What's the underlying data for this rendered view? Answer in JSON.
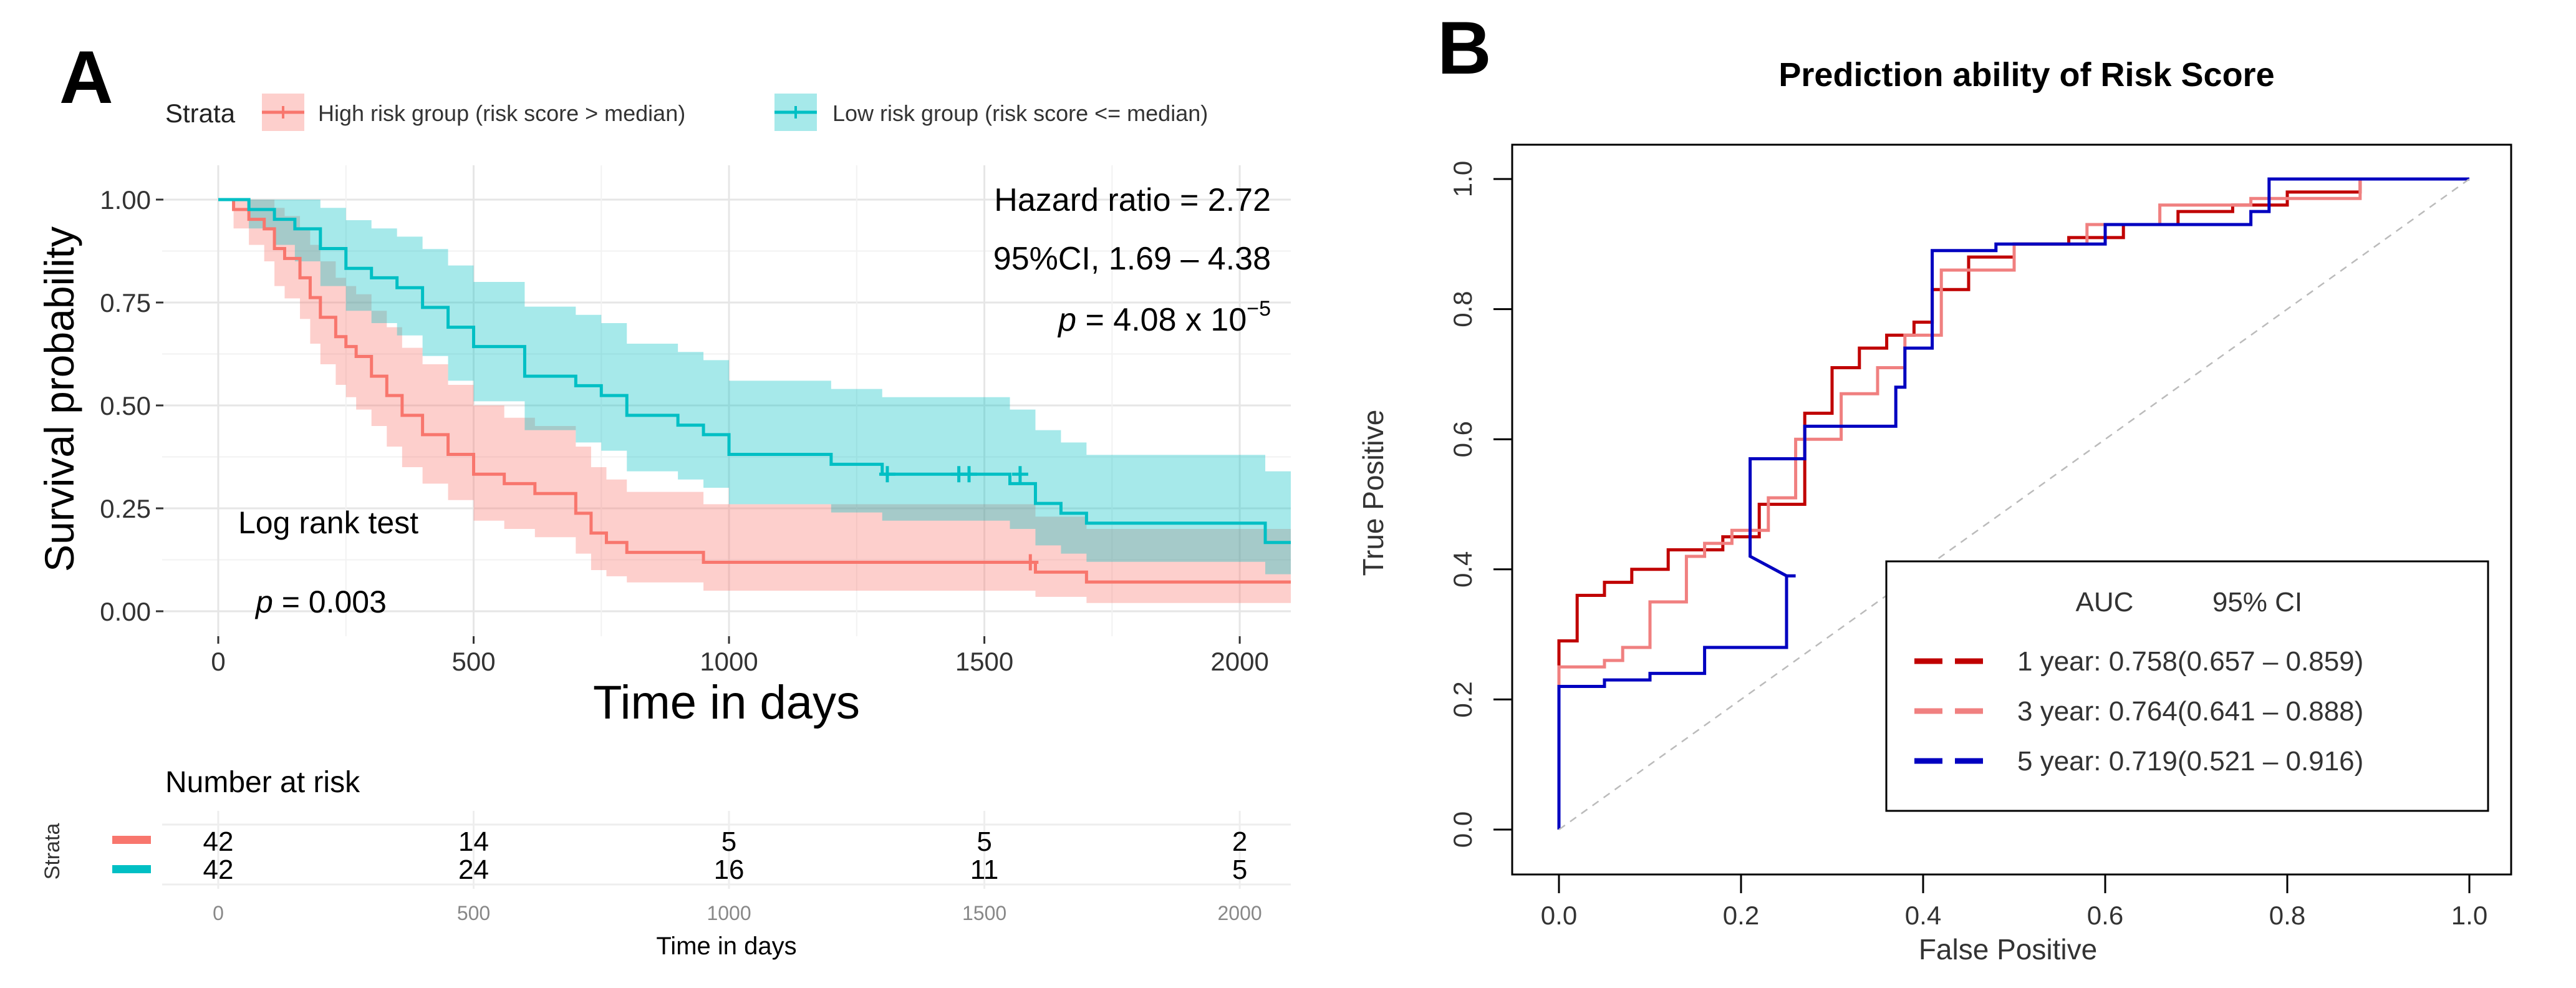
{
  "panel_a": {
    "label": "A",
    "strata_title": "Strata",
    "legend": [
      {
        "name": "High risk group (risk score > median)",
        "color": "#F8766D",
        "fill": "#F8766D"
      },
      {
        "name": "Low risk group (risk score <= median)",
        "color": "#00BFC4",
        "fill": "#00BFC4"
      }
    ],
    "annotations": {
      "hr": "Hazard ratio = 2.72",
      "ci": "95%CI, 1.69 – 4.38",
      "p_italic": "p",
      "p_text": " = 4.08 x 10",
      "p_exp": "−5",
      "logrank": "Log rank test",
      "logrank_p_italic": "p",
      "logrank_p_text": " = 0.003"
    },
    "risk_table": {
      "title": "Number at risk",
      "strata_label": "Strata",
      "times": [
        0,
        500,
        1000,
        1500,
        2000
      ],
      "time_labels": [
        "0",
        "500",
        "1000",
        "1500",
        "2000"
      ],
      "rows": [
        {
          "color": "#F8766D",
          "counts": [
            "42",
            "14",
            "5",
            "5",
            "2"
          ]
        },
        {
          "color": "#00BFC4",
          "counts": [
            "42",
            "24",
            "16",
            "11",
            "5"
          ]
        }
      ],
      "xlabel": "Time in days"
    }
  },
  "panel_b": {
    "label": "B",
    "legend_header": {
      "auc": "AUC",
      "ci": "95% CI"
    },
    "legend": [
      {
        "label": "1 year: 0.758(0.657 – 0.859)",
        "color": "#C00000"
      },
      {
        "label": "3 year: 0.764(0.641 – 0.888)",
        "color": "#F08080"
      },
      {
        "label": "5 year: 0.719(0.521 – 0.916)",
        "color": "#0000C0"
      }
    ]
  },
  "chart_data": [
    {
      "type": "line",
      "subtype": "kaplan-meier",
      "title": "",
      "xlabel": "Time in days",
      "ylabel": "Survival probability",
      "xlim": [
        0,
        2100
      ],
      "ylim": [
        0,
        1
      ],
      "xticks": [
        0,
        500,
        1000,
        1500,
        2000
      ],
      "xtick_labels": [
        "0",
        "500",
        "1000",
        "1500",
        "2000"
      ],
      "yticks": [
        0,
        0.25,
        0.5,
        0.75,
        1.0
      ],
      "ytick_labels": [
        "0.00",
        "0.25",
        "0.50",
        "0.75",
        "1.00"
      ],
      "series": [
        {
          "name": "High risk group (risk score > median)",
          "color": "#F8766D",
          "x": [
            0,
            30,
            60,
            90,
            110,
            130,
            160,
            180,
            200,
            230,
            250,
            270,
            300,
            330,
            360,
            400,
            450,
            500,
            560,
            620,
            700,
            730,
            760,
            800,
            950,
            1000,
            1550,
            1600,
            1700,
            2100
          ],
          "y": [
            1.0,
            0.976,
            0.952,
            0.929,
            0.881,
            0.857,
            0.81,
            0.762,
            0.714,
            0.667,
            0.643,
            0.619,
            0.571,
            0.524,
            0.476,
            0.429,
            0.381,
            0.333,
            0.31,
            0.286,
            0.238,
            0.19,
            0.167,
            0.143,
            0.119,
            0.119,
            0.119,
            0.095,
            0.071,
            0.071
          ],
          "upper": [
            1.0,
            1.0,
            1.0,
            1.0,
            0.98,
            0.96,
            0.93,
            0.89,
            0.85,
            0.81,
            0.79,
            0.77,
            0.73,
            0.69,
            0.64,
            0.6,
            0.55,
            0.5,
            0.47,
            0.45,
            0.4,
            0.35,
            0.32,
            0.29,
            0.26,
            0.26,
            0.26,
            0.23,
            0.2,
            0.2
          ],
          "lower": [
            1.0,
            0.93,
            0.89,
            0.85,
            0.79,
            0.76,
            0.71,
            0.65,
            0.6,
            0.55,
            0.52,
            0.49,
            0.45,
            0.4,
            0.35,
            0.31,
            0.27,
            0.22,
            0.2,
            0.18,
            0.14,
            0.1,
            0.085,
            0.07,
            0.05,
            0.05,
            0.05,
            0.035,
            0.02,
            0.02
          ],
          "censor_x": [
            1590
          ],
          "censor_y": [
            0.119
          ]
        },
        {
          "name": "Low risk group (risk score <= median)",
          "color": "#00BFC4",
          "x": [
            0,
            60,
            110,
            150,
            200,
            250,
            300,
            350,
            400,
            450,
            500,
            600,
            700,
            750,
            800,
            900,
            950,
            1000,
            1200,
            1300,
            1500,
            1550,
            1600,
            1650,
            1700,
            2050,
            2100
          ],
          "y": [
            1.0,
            0.976,
            0.952,
            0.929,
            0.881,
            0.833,
            0.81,
            0.786,
            0.738,
            0.69,
            0.643,
            0.571,
            0.548,
            0.524,
            0.476,
            0.452,
            0.429,
            0.381,
            0.357,
            0.333,
            0.333,
            0.31,
            0.262,
            0.238,
            0.214,
            0.167,
            0.167
          ],
          "upper": [
            1.0,
            1.0,
            1.0,
            1.0,
            0.98,
            0.95,
            0.93,
            0.91,
            0.88,
            0.84,
            0.8,
            0.74,
            0.72,
            0.7,
            0.65,
            0.63,
            0.61,
            0.56,
            0.54,
            0.52,
            0.52,
            0.49,
            0.44,
            0.41,
            0.38,
            0.34,
            0.34
          ],
          "lower": [
            1.0,
            0.93,
            0.89,
            0.85,
            0.79,
            0.73,
            0.7,
            0.67,
            0.62,
            0.56,
            0.51,
            0.44,
            0.41,
            0.39,
            0.34,
            0.32,
            0.3,
            0.26,
            0.24,
            0.22,
            0.22,
            0.2,
            0.16,
            0.14,
            0.12,
            0.09,
            0.09
          ],
          "censor_x": [
            1310,
            1450,
            1470,
            1570
          ],
          "censor_y": [
            0.333,
            0.333,
            0.333,
            0.333
          ]
        }
      ]
    },
    {
      "type": "line",
      "subtype": "roc",
      "title": "Prediction ability of Risk Score",
      "xlabel": "False Positive",
      "ylabel": "True Positive",
      "xlim": [
        0,
        1
      ],
      "ylim": [
        0,
        1
      ],
      "xticks": [
        0,
        0.2,
        0.4,
        0.6,
        0.8,
        1.0
      ],
      "xtick_labels": [
        "0.0",
        "0.2",
        "0.4",
        "0.6",
        "0.8",
        "1.0"
      ],
      "yticks": [
        0,
        0.2,
        0.4,
        0.6,
        0.8,
        1.0
      ],
      "ytick_labels": [
        "0.0",
        "0.2",
        "0.4",
        "0.6",
        "0.8",
        "1.0"
      ],
      "series": [
        {
          "name": "1 year",
          "color": "#C00000",
          "x": [
            0,
            0,
            0.02,
            0.02,
            0.05,
            0.05,
            0.08,
            0.08,
            0.12,
            0.12,
            0.18,
            0.18,
            0.22,
            0.22,
            0.27,
            0.27,
            0.3,
            0.3,
            0.33,
            0.33,
            0.36,
            0.36,
            0.39,
            0.39,
            0.41,
            0.41,
            0.45,
            0.45,
            0.5,
            0.5,
            0.56,
            0.56,
            0.62,
            0.62,
            0.68,
            0.68,
            0.74,
            0.74,
            0.8,
            0.8,
            0.88,
            0.88,
            1.0
          ],
          "y": [
            0,
            0.29,
            0.29,
            0.36,
            0.36,
            0.38,
            0.38,
            0.4,
            0.4,
            0.43,
            0.43,
            0.45,
            0.45,
            0.5,
            0.5,
            0.64,
            0.64,
            0.71,
            0.71,
            0.74,
            0.74,
            0.76,
            0.76,
            0.78,
            0.78,
            0.83,
            0.83,
            0.88,
            0.88,
            0.9,
            0.9,
            0.91,
            0.91,
            0.93,
            0.93,
            0.95,
            0.95,
            0.96,
            0.96,
            0.98,
            0.98,
            1.0,
            1.0
          ]
        },
        {
          "name": "3 year",
          "color": "#F08080",
          "x": [
            0,
            0,
            0.05,
            0.05,
            0.07,
            0.07,
            0.1,
            0.1,
            0.14,
            0.14,
            0.16,
            0.16,
            0.19,
            0.19,
            0.23,
            0.23,
            0.26,
            0.26,
            0.31,
            0.31,
            0.35,
            0.35,
            0.38,
            0.38,
            0.42,
            0.42,
            0.5,
            0.5,
            0.58,
            0.58,
            0.66,
            0.66,
            0.76,
            0.76,
            0.88,
            0.88,
            1.0
          ],
          "y": [
            0,
            0.25,
            0.25,
            0.26,
            0.26,
            0.28,
            0.28,
            0.35,
            0.35,
            0.42,
            0.42,
            0.44,
            0.44,
            0.46,
            0.46,
            0.51,
            0.51,
            0.6,
            0.6,
            0.67,
            0.67,
            0.71,
            0.71,
            0.76,
            0.76,
            0.86,
            0.86,
            0.9,
            0.9,
            0.93,
            0.93,
            0.96,
            0.96,
            0.97,
            0.97,
            1.0,
            1.0
          ]
        },
        {
          "name": "5 year",
          "color": "#0000C0",
          "x": [
            0,
            0,
            0.05,
            0.05,
            0.1,
            0.1,
            0.16,
            0.16,
            0.21,
            0.21,
            0.25,
            0.25,
            0.26,
            0.25,
            0.21,
            0.21,
            0.27,
            0.27,
            0.31,
            0.31,
            0.37,
            0.37,
            0.38,
            0.38,
            0.41,
            0.41,
            0.48,
            0.48,
            0.6,
            0.6,
            0.76,
            0.76,
            0.78,
            0.78,
            1.0
          ],
          "y": [
            0,
            0.22,
            0.22,
            0.23,
            0.23,
            0.24,
            0.24,
            0.28,
            0.28,
            0.28,
            0.28,
            0.39,
            0.39,
            0.39,
            0.42,
            0.57,
            0.57,
            0.62,
            0.62,
            0.62,
            0.62,
            0.68,
            0.68,
            0.74,
            0.74,
            0.89,
            0.89,
            0.9,
            0.9,
            0.93,
            0.93,
            0.95,
            0.95,
            1.0,
            1.0
          ]
        },
        {
          "name": "reference",
          "color": "#BBBBBB",
          "x": [
            0,
            1
          ],
          "y": [
            0,
            1
          ]
        }
      ]
    }
  ]
}
